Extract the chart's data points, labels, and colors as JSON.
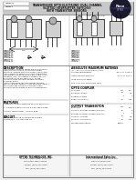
{
  "bg_color": "#f0f0f0",
  "page_bg": "#ffffff",
  "border_color": "#888888",
  "text_color": "#333333",
  "dark_color": "#222222",
  "title_lines": [
    "TRANSMISSIVE OPTO-ELECTRONIC DUAL CHANNEL",
    "SLOTTED INTERRUPTER SWITCHES",
    "WITH TRANSISTOR SENSORS"
  ],
  "part_numbers_left": [
    "OPB820L",
    "OPB821L",
    "OPB822L",
    "OPB823L"
  ],
  "part_numbers_right": [
    "OPB824",
    "OPB825",
    "OPB826",
    "OPB827"
  ],
  "logo_color": "#1a1a2e",
  "logo_text": "Paco",
  "logo_sub": "OPTEK",
  "header_gray": "#c8c8c8",
  "section_line_color": "#555555",
  "fig_w": 1.49,
  "fig_h": 1.98,
  "dpi": 100
}
